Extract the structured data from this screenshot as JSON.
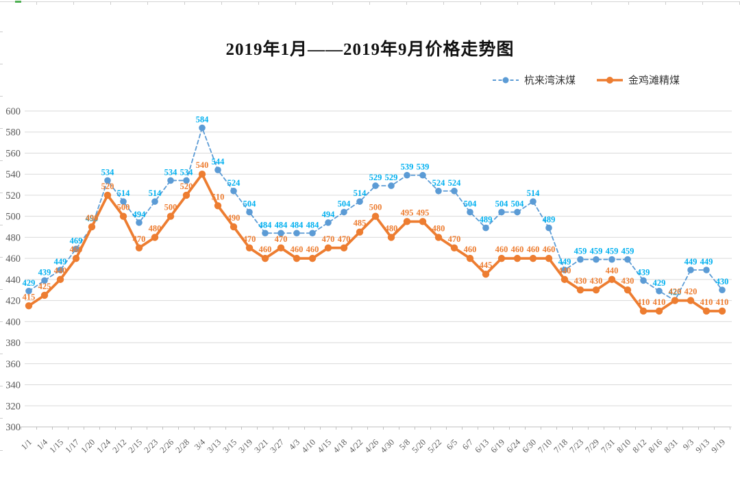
{
  "title": "2019年1月——2019年9月价格走势图",
  "legend": {
    "items": [
      {
        "label": "杭来湾沫煤"
      },
      {
        "label": "金鸡滩精煤"
      }
    ]
  },
  "chart_data": {
    "type": "line",
    "title": "2019年1月——2019年9月价格走势图",
    "categories": [
      "1/1",
      "1/4",
      "1/15",
      "1/17",
      "1/20",
      "1/24",
      "2/12",
      "2/15",
      "2/23",
      "2/26",
      "2/28",
      "3/4",
      "3/13",
      "3/15",
      "3/19",
      "3/21",
      "3/27",
      "4/3",
      "4/10",
      "4/15",
      "4/18",
      "4/22",
      "4/26",
      "4/30",
      "5/8",
      "5/20",
      "5/22",
      "6/5",
      "6/7",
      "6/13",
      "6/19",
      "6/24",
      "6/30",
      "7/10",
      "7/18",
      "7/23",
      "7/29",
      "7/31",
      "8/10",
      "8/12",
      "8/16",
      "8/31",
      "9/3",
      "9/13",
      "9/19"
    ],
    "series": [
      {
        "name": "杭来湾沫煤",
        "line_style": "dashed",
        "color": "#5B9BD5",
        "label_color": "#00B0F0",
        "values": [
          429,
          439,
          449,
          469,
          490,
          534,
          514,
          494,
          514,
          534,
          534,
          584,
          544,
          524,
          504,
          484,
          484,
          484,
          484,
          494,
          504,
          514,
          529,
          529,
          539,
          539,
          524,
          524,
          504,
          489,
          504,
          504,
          514,
          489,
          449,
          459,
          459,
          459,
          459,
          439,
          429,
          420,
          449,
          449,
          430
        ]
      },
      {
        "name": "金鸡滩精煤",
        "line_style": "solid",
        "color": "#ED7D31",
        "label_color": "#ED7D31",
        "values": [
          415,
          425,
          440,
          460,
          490,
          520,
          500,
          470,
          480,
          500,
          520,
          540,
          510,
          490,
          470,
          460,
          470,
          460,
          460,
          470,
          470,
          485,
          500,
          480,
          495,
          495,
          480,
          470,
          460,
          445,
          460,
          460,
          460,
          460,
          440,
          430,
          430,
          440,
          430,
          410,
          410,
          420,
          420,
          410,
          410
        ]
      }
    ],
    "ylim": [
      300,
      600
    ],
    "ytick_step": 20,
    "grid": true,
    "data_labels": true,
    "legend_position": "top-right",
    "axis_label_color": "#595959",
    "gridline_color": "#D9D9D9",
    "axis_line_color": "#BFBFBF"
  }
}
